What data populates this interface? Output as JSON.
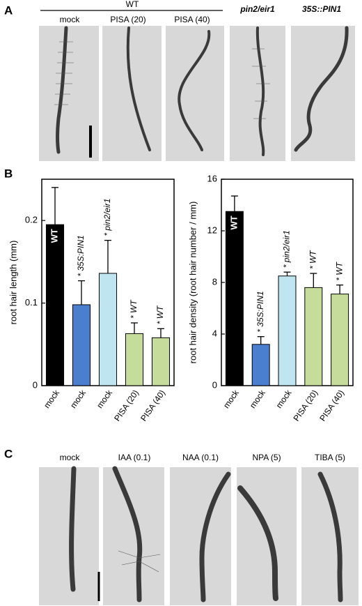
{
  "panel_a": {
    "letter": "A",
    "group_label": "WT",
    "labels": [
      "mock",
      "PISA (20)",
      "PISA (40)",
      "pin2/eir1",
      "35S::PIN1"
    ]
  },
  "panel_b": {
    "letter": "B"
  },
  "chart_data": [
    {
      "type": "bar",
      "y_label": "root hair length (mm)",
      "categories": [
        "mock",
        "mock",
        "mock",
        "PISA (20)",
        "PISA (40)"
      ],
      "values": [
        0.195,
        0.098,
        0.136,
        0.063,
        0.058
      ],
      "errors": [
        0.045,
        0.029,
        0.04,
        0.013,
        0.011
      ],
      "bar_labels": [
        "WT",
        "* 35S:PIN1",
        "* pin2/eir1",
        "* WT",
        "* WT"
      ],
      "colors": [
        "#000000",
        "#4a7fcf",
        "#bfe6f0",
        "#c5dc9a",
        "#c5dc9a"
      ],
      "ylim": [
        0,
        0.25
      ],
      "yticks": [
        0,
        0.1,
        0.2
      ]
    },
    {
      "type": "bar",
      "y_label": "root hair density (root hair number / mm)",
      "categories": [
        "mock",
        "mock",
        "mock",
        "PISA (20)",
        "PISA (40)"
      ],
      "values": [
        13.5,
        3.2,
        8.5,
        7.6,
        7.1
      ],
      "errors": [
        1.2,
        0.6,
        0.3,
        1.1,
        0.7
      ],
      "bar_labels": [
        "WT",
        "* 35S:PIN1",
        "* pin2/eir1",
        "* WT",
        "* WT"
      ],
      "colors": [
        "#000000",
        "#4a7fcf",
        "#bfe6f0",
        "#c5dc9a",
        "#c5dc9a"
      ],
      "ylim": [
        0,
        16
      ],
      "yticks": [
        0,
        4,
        8,
        12,
        16
      ]
    }
  ],
  "panel_c": {
    "letter": "C",
    "labels": [
      "mock",
      "IAA (0.1)",
      "NAA (0.1)",
      "NPA (5)",
      "TIBA (5)"
    ]
  }
}
